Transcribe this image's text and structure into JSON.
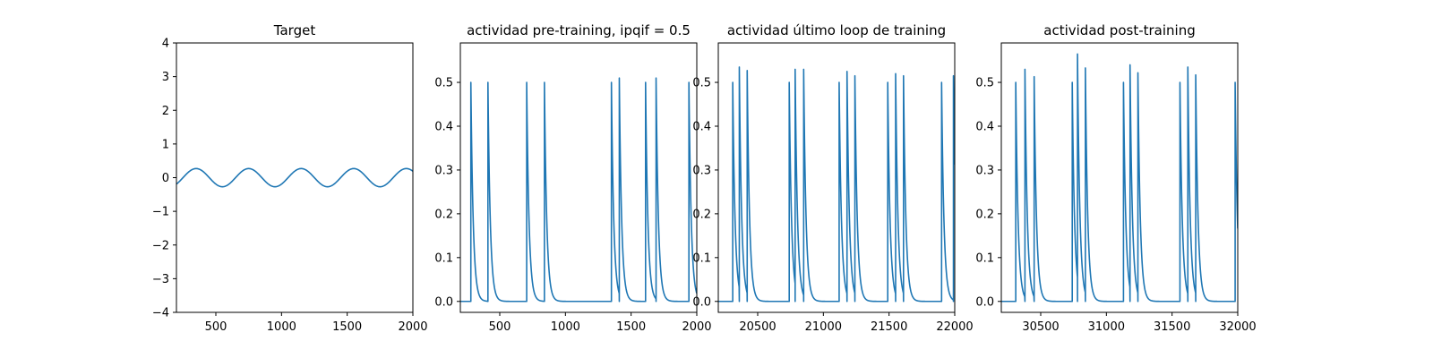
{
  "chart_data": [
    {
      "type": "line",
      "title": "Target",
      "xlim": [
        200,
        2000
      ],
      "ylim": [
        -4,
        4
      ],
      "x_ticks": [
        500,
        1000,
        1500,
        2000
      ],
      "x_tick_labels": [
        "500",
        "1000",
        "1500",
        "2000"
      ],
      "y_ticks": [
        4,
        3,
        2,
        1,
        0,
        -1,
        -2,
        -3,
        -4
      ],
      "y_tick_labels": [
        "4",
        "3",
        "2",
        "1",
        "0",
        "−1",
        "−2",
        "−3",
        "−4"
      ],
      "color": "#1f77b4",
      "series": [
        {
          "kind": "sine",
          "amplitude": 0.27,
          "period": 400,
          "peaks_at": [
            350,
            750,
            1150,
            1550,
            1950
          ],
          "x_range": [
            200,
            2000
          ]
        }
      ]
    },
    {
      "type": "line",
      "title": "actividad pre-training, ipqif = 0.5",
      "xlim": [
        200,
        2000
      ],
      "ylim": [
        -0.025,
        0.59
      ],
      "x_ticks": [
        500,
        1000,
        1500,
        2000
      ],
      "x_tick_labels": [
        "500",
        "1000",
        "1500",
        "2000"
      ],
      "y_ticks": [
        0.0,
        0.1,
        0.2,
        0.3,
        0.4,
        0.5
      ],
      "y_tick_labels": [
        "0.0",
        "0.1",
        "0.2",
        "0.3",
        "0.4",
        "0.5"
      ],
      "color": "#1f77b4",
      "series": [
        {
          "kind": "spike_train",
          "spikes": [
            {
              "x": 280,
              "peak": 0.5
            },
            {
              "x": 410,
              "peak": 0.5
            },
            {
              "x": 705,
              "peak": 0.5
            },
            {
              "x": 840,
              "peak": 0.5
            },
            {
              "x": 1350,
              "peak": 0.5
            },
            {
              "x": 1410,
              "peak": 0.51
            },
            {
              "x": 1610,
              "peak": 0.5
            },
            {
              "x": 1690,
              "peak": 0.51
            },
            {
              "x": 1940,
              "peak": 0.5
            }
          ]
        }
      ]
    },
    {
      "type": "line",
      "title": "actividad último loop de training",
      "xlim": [
        20200,
        22000
      ],
      "ylim": [
        -0.025,
        0.59
      ],
      "x_ticks": [
        20500,
        21000,
        21500,
        22000
      ],
      "x_tick_labels": [
        "20500",
        "21000",
        "21500",
        "22000"
      ],
      "y_ticks": [
        0.0,
        0.1,
        0.2,
        0.3,
        0.4,
        0.5
      ],
      "y_tick_labels": [
        "0.0",
        "0.1",
        "0.2",
        "0.3",
        "0.4",
        "0.5"
      ],
      "color": "#1f77b4",
      "series": [
        {
          "kind": "spike_train",
          "spikes": [
            {
              "x": 20310,
              "peak": 0.5
            },
            {
              "x": 20360,
              "peak": 0.535
            },
            {
              "x": 20420,
              "peak": 0.527
            },
            {
              "x": 20740,
              "peak": 0.5
            },
            {
              "x": 20785,
              "peak": 0.53
            },
            {
              "x": 20850,
              "peak": 0.53
            },
            {
              "x": 21120,
              "peak": 0.5
            },
            {
              "x": 21180,
              "peak": 0.525
            },
            {
              "x": 21240,
              "peak": 0.515
            },
            {
              "x": 21490,
              "peak": 0.5
            },
            {
              "x": 21550,
              "peak": 0.52
            },
            {
              "x": 21610,
              "peak": 0.515
            },
            {
              "x": 21900,
              "peak": 0.5
            },
            {
              "x": 21990,
              "peak": 0.515
            }
          ]
        }
      ]
    },
    {
      "type": "line",
      "title": "actividad post-training",
      "xlim": [
        30200,
        32000
      ],
      "ylim": [
        -0.025,
        0.59
      ],
      "x_ticks": [
        30500,
        31000,
        31500,
        32000
      ],
      "x_tick_labels": [
        "30500",
        "31000",
        "31500",
        "32000"
      ],
      "y_ticks": [
        0.0,
        0.1,
        0.2,
        0.3,
        0.4,
        0.5
      ],
      "y_tick_labels": [
        "0.0",
        "0.1",
        "0.2",
        "0.3",
        "0.4",
        "0.5"
      ],
      "color": "#1f77b4",
      "series": [
        {
          "kind": "spike_train",
          "spikes": [
            {
              "x": 30310,
              "peak": 0.5
            },
            {
              "x": 30380,
              "peak": 0.53
            },
            {
              "x": 30450,
              "peak": 0.513
            },
            {
              "x": 30740,
              "peak": 0.5
            },
            {
              "x": 30780,
              "peak": 0.565
            },
            {
              "x": 30840,
              "peak": 0.533
            },
            {
              "x": 31130,
              "peak": 0.5
            },
            {
              "x": 31180,
              "peak": 0.54
            },
            {
              "x": 31240,
              "peak": 0.522
            },
            {
              "x": 31560,
              "peak": 0.5
            },
            {
              "x": 31620,
              "peak": 0.535
            },
            {
              "x": 31680,
              "peak": 0.517
            },
            {
              "x": 31980,
              "peak": 0.5
            }
          ]
        }
      ]
    }
  ]
}
